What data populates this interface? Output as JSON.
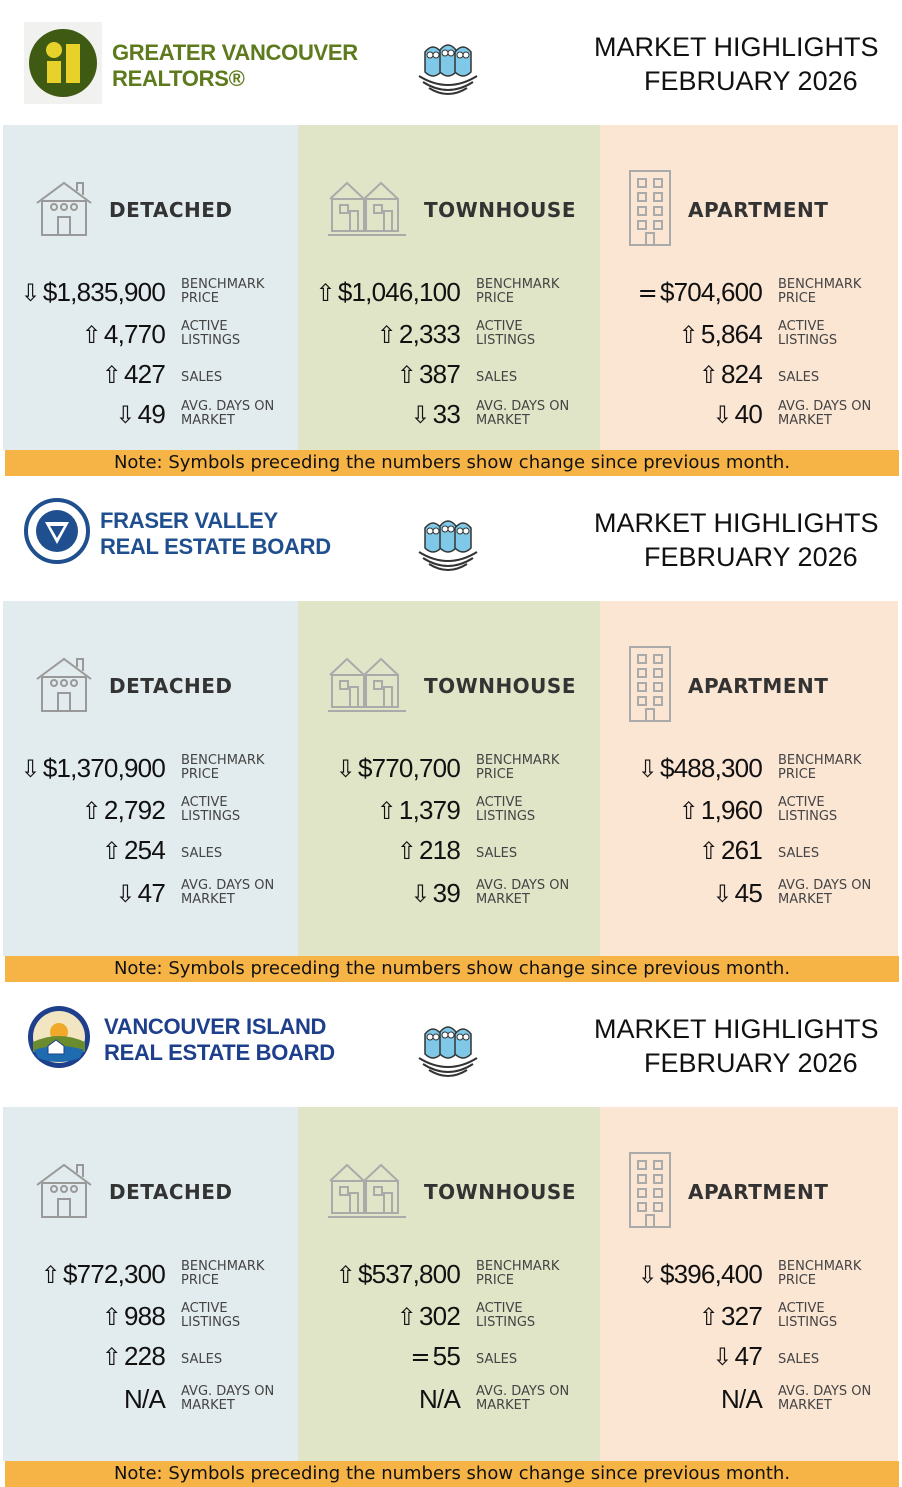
{
  "sections": [
    {
      "logo": [
        "GREATER VANCOUVER",
        "REALTORS®"
      ],
      "title": [
        "MARKET HIGHLIGHTS",
        "FEBRUARY 2026"
      ],
      "columns": [
        {
          "heading": "DETACHED",
          "rows": [
            {
              "change": "⇩",
              "value": "$1,835,900",
              "label": "BENCHMARK PRICE"
            },
            {
              "change": "⇧",
              "value": "4,770",
              "label": "ACTIVE LISTINGS"
            },
            {
              "change": "⇧",
              "value": "427",
              "label": "SALES"
            },
            {
              "change": "⇩",
              "value": "49",
              "label": "AVG. DAYS ON MARKET"
            }
          ]
        },
        {
          "heading": "TOWNHOUSE",
          "rows": [
            {
              "change": "⇧",
              "value": "$1,046,100",
              "label": "BENCHMARK PRICE"
            },
            {
              "change": "⇧",
              "value": "2,333",
              "label": "ACTIVE LISTINGS"
            },
            {
              "change": "⇧",
              "value": "387",
              "label": "SALES"
            },
            {
              "change": "⇩",
              "value": "33",
              "label": "AVG. DAYS ON MARKET"
            }
          ]
        },
        {
          "heading": "APARTMENT",
          "rows": [
            {
              "change": "=",
              "value": "$704,600",
              "label": "BENCHMARK PRICE"
            },
            {
              "change": "⇧",
              "value": "5,864",
              "label": "ACTIVE LISTINGS"
            },
            {
              "change": "⇧",
              "value": "824",
              "label": "SALES"
            },
            {
              "change": "⇩",
              "value": "40",
              "label": "AVG. DAYS ON MARKET"
            }
          ]
        }
      ],
      "note": "Note: Symbols preceding the numbers show change since previous month."
    },
    {
      "logo": [
        "FRASER VALLEY",
        "REAL ESTATE BOARD"
      ],
      "title": [
        "MARKET HIGHLIGHTS",
        "FEBRUARY 2026"
      ],
      "columns": [
        {
          "heading": "DETACHED",
          "rows": [
            {
              "change": "⇩",
              "value": "$1,370,900",
              "label": "BENCHMARK PRICE"
            },
            {
              "change": "⇧",
              "value": "2,792",
              "label": "ACTIVE LISTINGS"
            },
            {
              "change": "⇧",
              "value": "254",
              "label": "SALES"
            },
            {
              "change": "⇩",
              "value": "47",
              "label": "AVG. DAYS ON MARKET"
            }
          ]
        },
        {
          "heading": "TOWNHOUSE",
          "rows": [
            {
              "change": "⇩",
              "value": "$770,700",
              "label": "BENCHMARK PRICE"
            },
            {
              "change": "⇧",
              "value": "1,379",
              "label": "ACTIVE LISTINGS"
            },
            {
              "change": "⇧",
              "value": "218",
              "label": "SALES"
            },
            {
              "change": "⇩",
              "value": "39",
              "label": "AVG. DAYS ON MARKET"
            }
          ]
        },
        {
          "heading": "APARTMENT",
          "rows": [
            {
              "change": "⇩",
              "value": "$488,300",
              "label": "BENCHMARK PRICE"
            },
            {
              "change": "⇧",
              "value": "1,960",
              "label": "ACTIVE LISTINGS"
            },
            {
              "change": "⇧",
              "value": "261",
              "label": "SALES"
            },
            {
              "change": "⇩",
              "value": "45",
              "label": "AVG. DAYS ON MARKET"
            }
          ]
        }
      ],
      "note": "Note: Symbols preceding the numbers show change since previous month."
    },
    {
      "logo": [
        "VANCOUVER ISLAND",
        "REAL ESTATE BOARD"
      ],
      "title": [
        "MARKET HIGHLIGHTS",
        "FEBRUARY 2026"
      ],
      "columns": [
        {
          "heading": "DETACHED",
          "rows": [
            {
              "change": "⇧",
              "value": "$772,300",
              "label": "BENCHMARK PRICE"
            },
            {
              "change": "⇧",
              "value": "988",
              "label": "ACTIVE LISTINGS"
            },
            {
              "change": "⇧",
              "value": "228",
              "label": "SALES"
            },
            {
              "value": "N/A",
              "label": "AVG. DAYS ON MARKET"
            }
          ]
        },
        {
          "heading": "TOWNHOUSE",
          "rows": [
            {
              "change": "⇧",
              "value": "$537,800",
              "label": "BENCHMARK PRICE"
            },
            {
              "change": "⇧",
              "value": "302",
              "label": "ACTIVE LISTINGS"
            },
            {
              "change": "=",
              "value": "55",
              "label": "SALES"
            },
            {
              "value": "N/A",
              "label": "AVG. DAYS ON MARKET"
            }
          ]
        },
        {
          "heading": "APARTMENT",
          "rows": [
            {
              "change": "⇩",
              "value": "$396,400",
              "label": "BENCHMARK PRICE"
            },
            {
              "change": "⇧",
              "value": "327",
              "label": "ACTIVE LISTINGS"
            },
            {
              "change": "⇩",
              "value": "47",
              "label": "SALES"
            },
            {
              "value": "N/A",
              "label": "AVG. DAYS ON MARKET"
            }
          ]
        }
      ],
      "note": "Note: Symbols preceding the numbers show change since previous month."
    }
  ]
}
